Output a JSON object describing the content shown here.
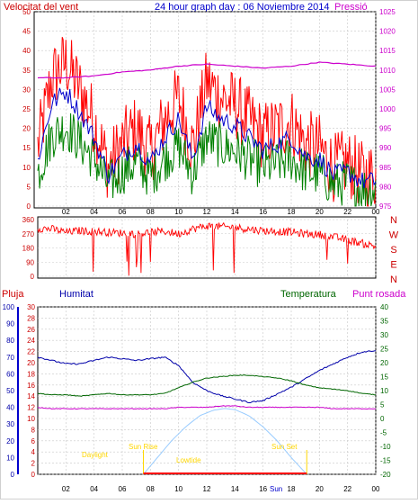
{
  "header": {
    "title": "24 hour graph day : 06 Noviembre 2014",
    "left_label": "Velocitat del vent",
    "right_label": "Pressió"
  },
  "direction_panel": {
    "y_ticks": [
      "360",
      "270",
      "180",
      "90",
      "0"
    ],
    "compass_labels": [
      "N",
      "W",
      "S",
      "E",
      "N"
    ]
  },
  "bottom_panel": {
    "labels": {
      "rain": "Pluja",
      "humidity": "Humitat",
      "temperature": "Temperatura",
      "dew": "Punt rosada"
    },
    "annotations": {
      "sunrise": "Sun Rise",
      "sunset": "Sun Set",
      "daylight": "Daylight",
      "lowtide": "Lowtide",
      "sun_label": "Sun"
    }
  },
  "colors": {
    "wind": "#ff0000",
    "gust": "#ff0000",
    "avg": "#0000cc",
    "green": "#008000",
    "pressure": "#cc00cc",
    "humidity": "#0000aa",
    "temperature": "#006600",
    "dew": "#cc00cc",
    "sun": "#99ccff",
    "annotation": "#ffd700"
  },
  "chart_data": [
    {
      "type": "line",
      "x_ticks": [
        "02",
        "04",
        "06",
        "08",
        "10",
        "12",
        "14",
        "16",
        "18",
        "20",
        "22",
        "00"
      ],
      "ylim_left": [
        0,
        50
      ],
      "ylim_right": [
        975,
        1025
      ],
      "left_ticks": [
        "50",
        "45",
        "40",
        "35",
        "30",
        "25",
        "20",
        "15",
        "10",
        "5",
        "0"
      ],
      "right_ticks": [
        "1025",
        "1020",
        "1015",
        "1010",
        "1005",
        "1000",
        "995",
        "990",
        "985",
        "980",
        "975"
      ],
      "series": [
        {
          "name": "Velocitat del vent",
          "x": [
            0,
            1,
            2,
            3,
            4,
            5,
            6,
            7,
            8,
            9,
            10,
            11,
            12,
            13,
            14,
            15,
            16,
            17,
            18,
            19,
            20,
            21,
            22,
            23,
            24
          ],
          "values": [
            15,
            33,
            37,
            30,
            22,
            10,
            16,
            20,
            14,
            22,
            28,
            15,
            32,
            28,
            26,
            22,
            18,
            20,
            22,
            16,
            15,
            10,
            11,
            8,
            8
          ]
        },
        {
          "name": "Pressió",
          "x": [
            0,
            2,
            4,
            6,
            8,
            10,
            12,
            14,
            16,
            18,
            20,
            22,
            24
          ],
          "values": [
            1008,
            1008,
            1008.5,
            1009.5,
            1010,
            1011,
            1011.5,
            1011,
            1010.5,
            1011,
            1012,
            1011.5,
            1011
          ]
        }
      ]
    },
    {
      "type": "line",
      "ylim": [
        0,
        360
      ],
      "series": [
        {
          "name": "direction",
          "x": [
            0,
            1,
            2,
            3,
            4,
            5,
            6,
            7,
            8,
            9,
            10,
            11,
            12,
            13,
            14,
            15,
            16,
            17,
            18,
            19,
            20,
            21,
            22,
            23,
            24
          ],
          "values": [
            305,
            300,
            280,
            290,
            285,
            280,
            275,
            270,
            280,
            285,
            270,
            300,
            320,
            315,
            310,
            300,
            290,
            285,
            280,
            270,
            265,
            250,
            230,
            210,
            190
          ]
        }
      ]
    },
    {
      "type": "line",
      "rain_axis": {
        "ylim": [
          0,
          30
        ],
        "ticks": [
          "30",
          "28",
          "26",
          "24",
          "22",
          "20",
          "18",
          "16",
          "14",
          "12",
          "10",
          "8",
          "6",
          "4",
          "2",
          "0"
        ]
      },
      "humidity_axis": {
        "ylim": [
          0,
          100
        ],
        "ticks": [
          "100",
          "90",
          "80",
          "70",
          "60",
          "50",
          "40",
          "30",
          "20",
          "10",
          "0"
        ]
      },
      "temperature_axis": {
        "ylim": [
          -20,
          40
        ],
        "ticks": [
          "40",
          "35",
          "30",
          "25",
          "20",
          "15",
          "10",
          "5",
          "0",
          "-5",
          "-10",
          "-15",
          "-20"
        ]
      },
      "series": [
        {
          "name": "Humitat",
          "axis": "humidity",
          "x": [
            0,
            1,
            2,
            3,
            4,
            5,
            6,
            7,
            8,
            9,
            10,
            11,
            12,
            13,
            14,
            15,
            16,
            17,
            18,
            19,
            20,
            21,
            22,
            23,
            24
          ],
          "values": [
            70,
            68,
            66,
            66,
            68,
            70,
            69,
            68,
            69,
            70,
            65,
            55,
            50,
            47,
            45,
            43,
            44,
            48,
            52,
            57,
            62,
            66,
            70,
            73,
            74
          ]
        },
        {
          "name": "Temperatura",
          "axis": "temperature",
          "x": [
            0,
            1,
            2,
            3,
            4,
            5,
            6,
            7,
            8,
            9,
            10,
            11,
            12,
            13,
            14,
            15,
            16,
            17,
            18,
            19,
            20,
            21,
            22,
            23,
            24
          ],
          "values": [
            9,
            8.5,
            8.5,
            8,
            8.5,
            9,
            8.5,
            8.5,
            8.5,
            9,
            11,
            13,
            14.5,
            15,
            15.5,
            15.5,
            15,
            14.5,
            13.5,
            12,
            11,
            10.5,
            10,
            9,
            8.5
          ]
        },
        {
          "name": "Punt rosada",
          "axis": "temperature",
          "x": [
            0,
            1,
            2,
            3,
            4,
            5,
            6,
            7,
            8,
            9,
            10,
            11,
            12,
            13,
            14,
            15,
            16,
            17,
            18,
            19,
            20,
            21,
            22,
            23,
            24
          ],
          "values": [
            4,
            3.5,
            3.5,
            3.5,
            3.5,
            3.5,
            3.5,
            3.5,
            3.5,
            3.5,
            4,
            4,
            4,
            4.5,
            4.5,
            4,
            4,
            4,
            4,
            4,
            4,
            3.5,
            3.5,
            3.5,
            3.5
          ]
        },
        {
          "name": "Sun",
          "axis": "rain",
          "x": [
            7.5,
            8.5,
            9.5,
            10.5,
            11.5,
            12.5,
            13.25,
            14,
            15,
            16,
            17,
            18,
            19.1
          ],
          "values": [
            0,
            3,
            6,
            8.5,
            10.5,
            11.5,
            11.8,
            11.6,
            10.5,
            8.5,
            6,
            3,
            0
          ]
        }
      ],
      "sunrise_x": 7.5,
      "sunset_x": 19.1
    }
  ]
}
